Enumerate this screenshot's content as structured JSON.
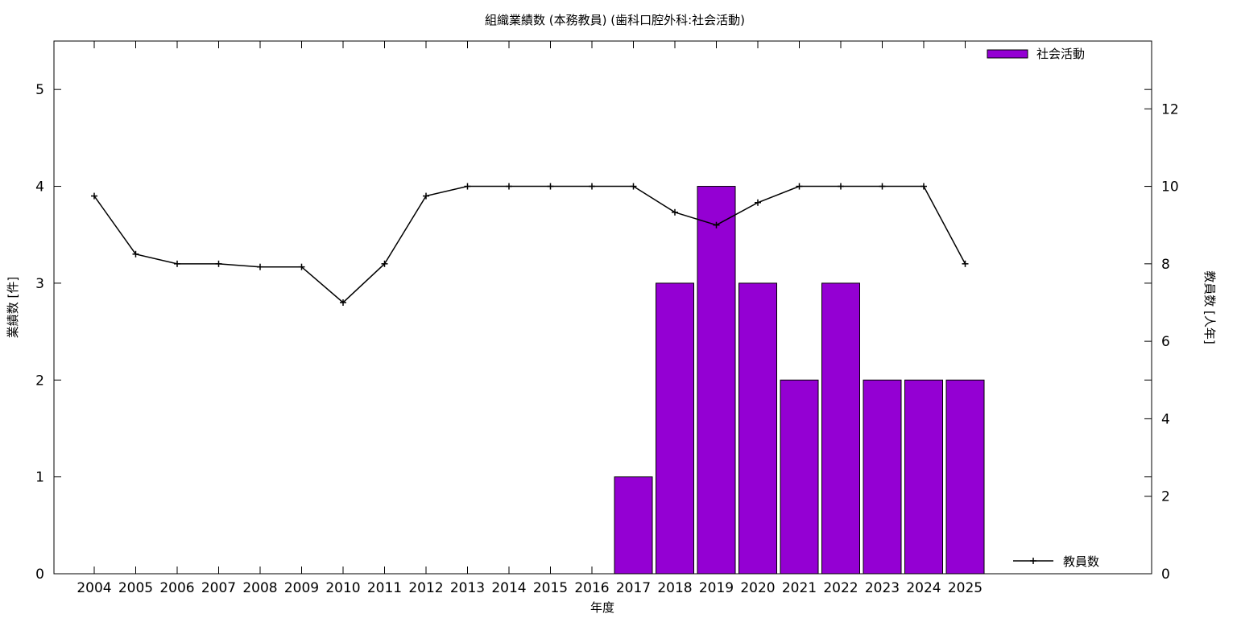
{
  "chart_data": {
    "type": "bar",
    "title": "組織業績数 (本務教員) (歯科口腔外科:社会活動)",
    "xlabel": "年度",
    "ylabel": "業績数 [件]",
    "y2label": "教員数 [人年]",
    "categories": [
      "2004",
      "2005",
      "2006",
      "2007",
      "2008",
      "2009",
      "2010",
      "2011",
      "2012",
      "2013",
      "2014",
      "2015",
      "2016",
      "2017",
      "2018",
      "2019",
      "2020",
      "2021",
      "2022",
      "2023",
      "2024",
      "2025"
    ],
    "ylim": [
      0,
      5.5
    ],
    "yticks": [
      0,
      1,
      2,
      3,
      4,
      5
    ],
    "y2lim": [
      0,
      13.75
    ],
    "y2ticks": [
      0,
      2,
      4,
      6,
      8,
      10,
      12
    ],
    "legend_placement": "top-right",
    "series": [
      {
        "name": "社会活動",
        "type": "bar",
        "axis": "left",
        "color": "#9400d3",
        "values": [
          0,
          0,
          0,
          0,
          0,
          0,
          0,
          0,
          0,
          0,
          0,
          0,
          0,
          1,
          3,
          4,
          3,
          2,
          3,
          2,
          2,
          2
        ]
      },
      {
        "name": "教員数",
        "type": "line",
        "axis": "right",
        "color": "#000000",
        "marker": "plus",
        "values": [
          9.75,
          8.25,
          8,
          8,
          7.92,
          7.92,
          7,
          8,
          9.75,
          10,
          10,
          10,
          10,
          10,
          9.33,
          9,
          9.58,
          10,
          10,
          10,
          10,
          8
        ]
      }
    ]
  }
}
